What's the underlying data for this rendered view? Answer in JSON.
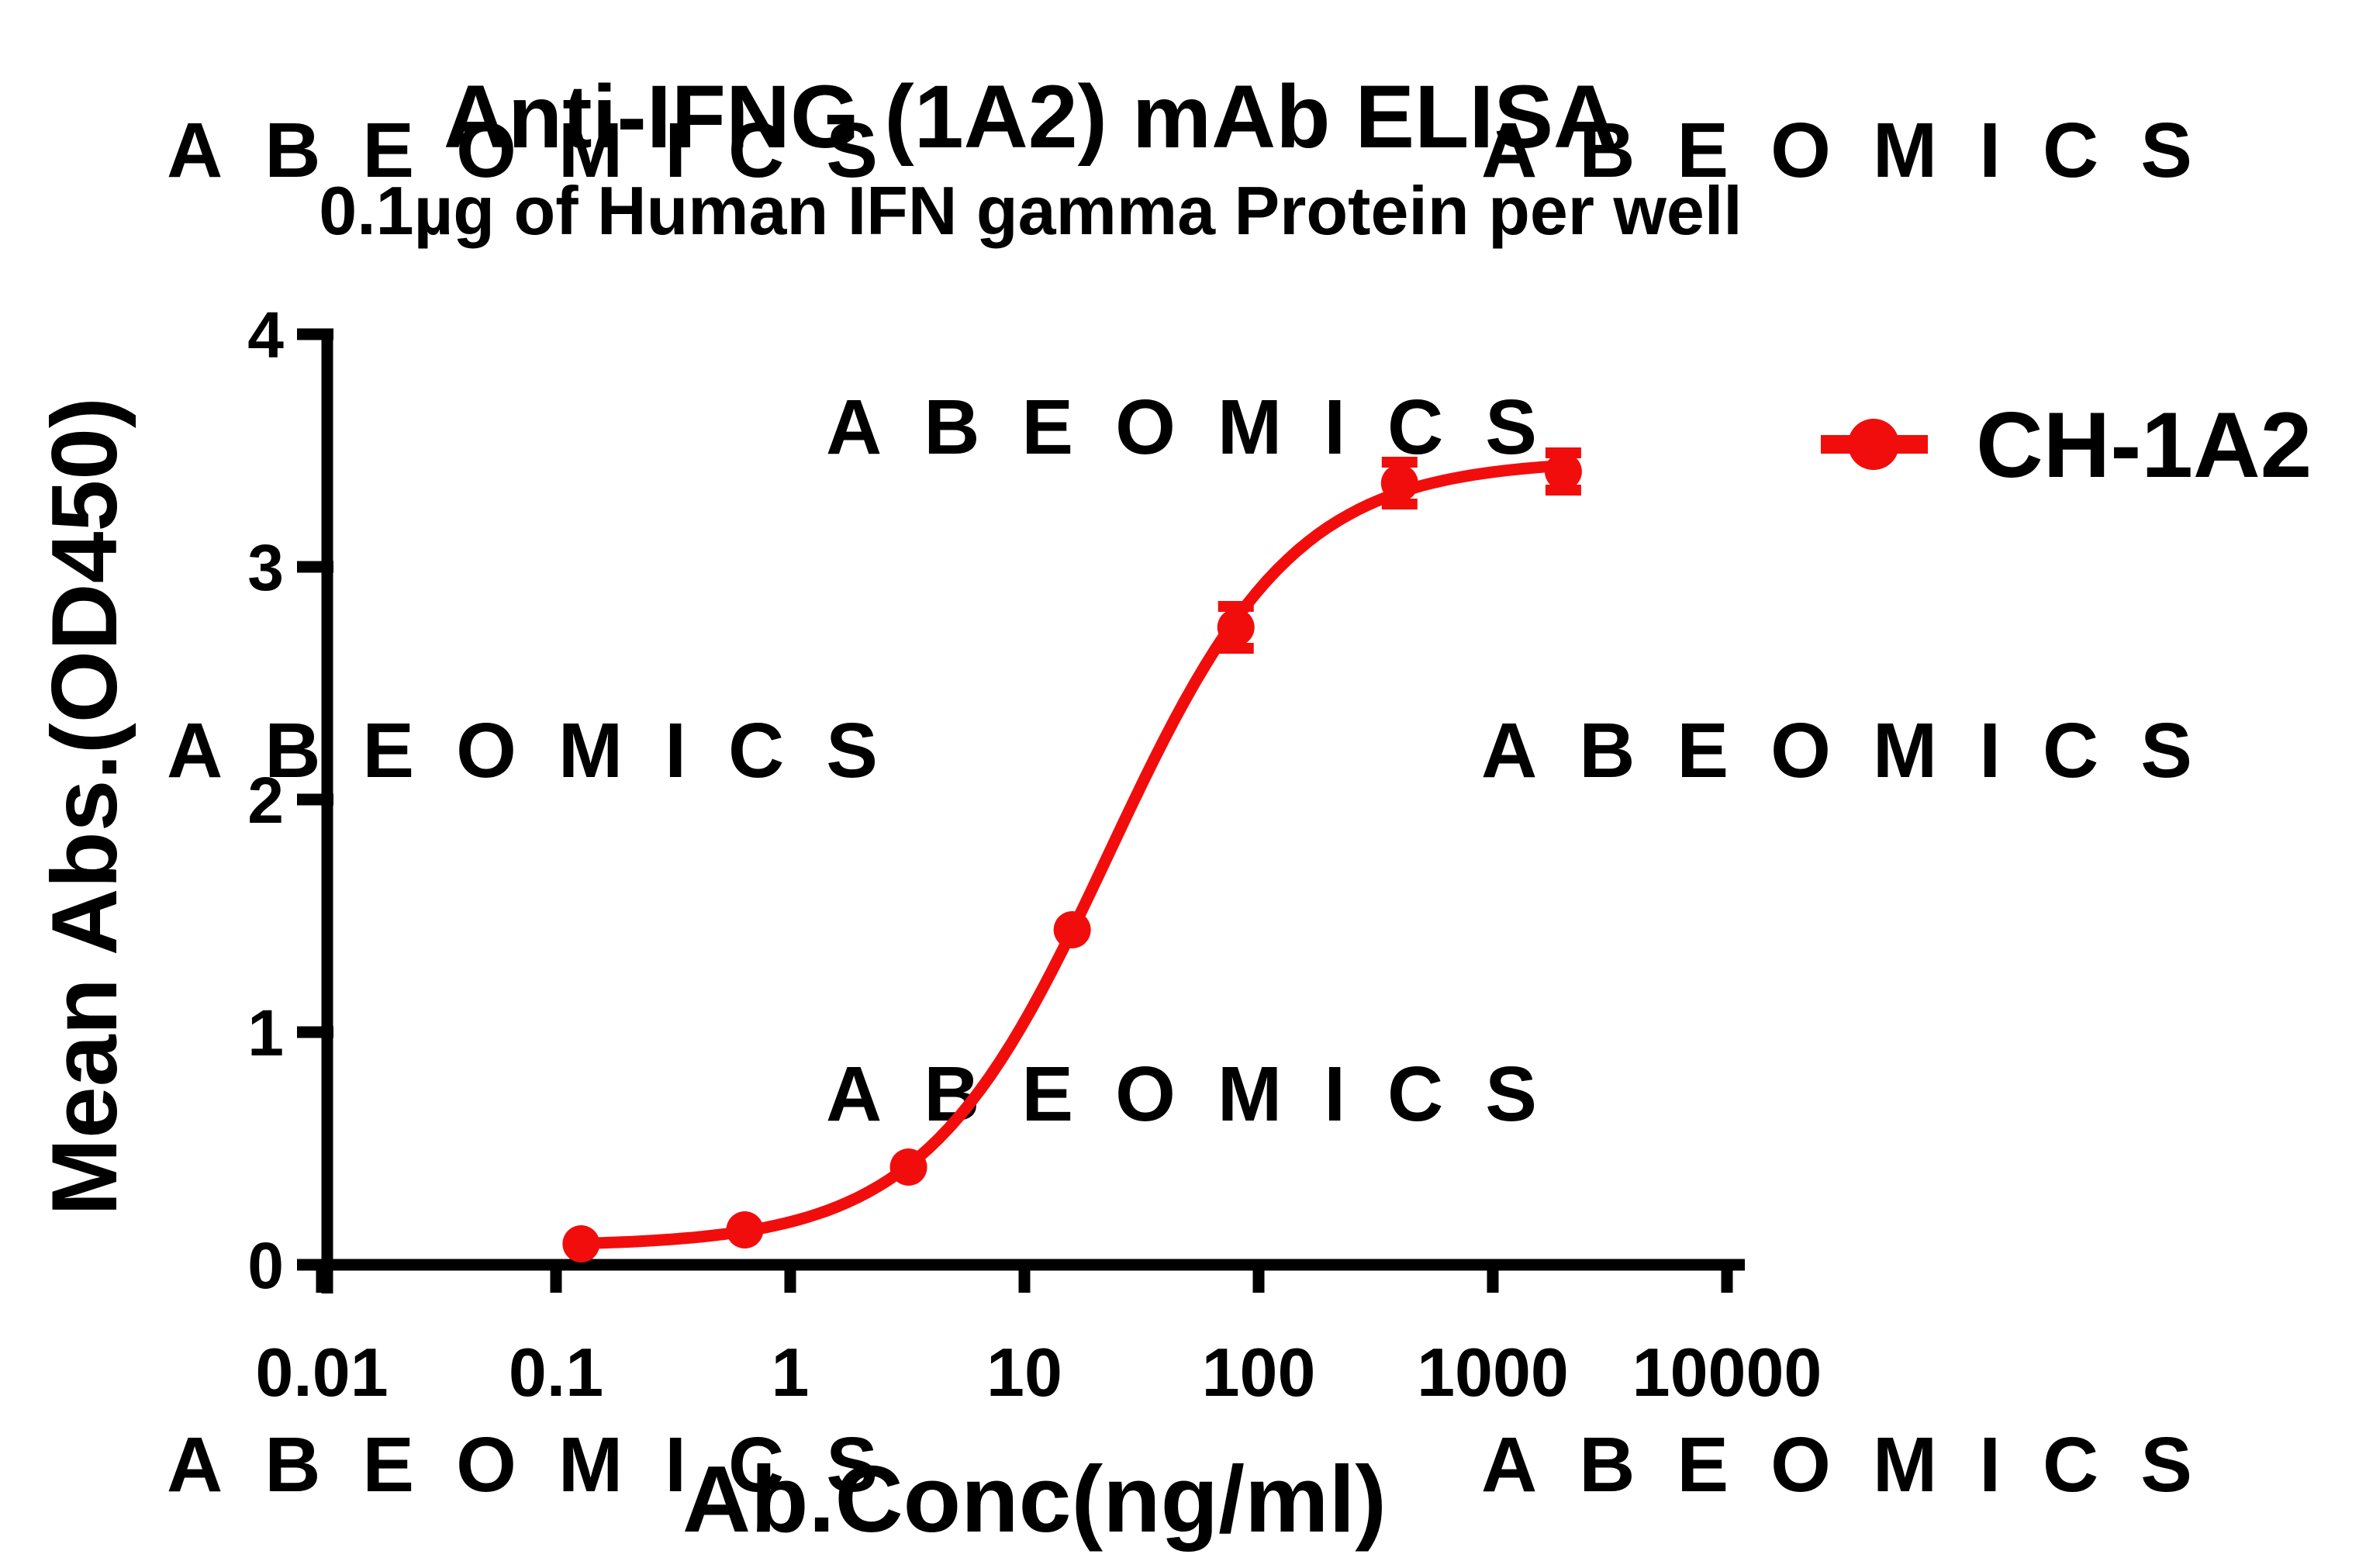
{
  "watermark": {
    "text": "ABEOMICS",
    "color": "#f1eaef"
  },
  "legend": {
    "label": "CH-1A2"
  },
  "colors": {
    "series": "#f20d0d",
    "axis": "#000000",
    "background": "#ffffff"
  },
  "chart_data": {
    "type": "line",
    "title": "Anti-IFNG (1A2) mAb ELISA",
    "subtitle": "0.1µg of Human IFN gamma Protein per well",
    "xlabel": "Ab.Conc(ng/ml)",
    "ylabel": "Mean Abs.(OD450)",
    "x_scale": "log10",
    "xlim": [
      0.01,
      10000
    ],
    "ylim": [
      0,
      4
    ],
    "grid": false,
    "legend_position": "right",
    "x_ticks": [
      {
        "v": 0.01,
        "label": "0.01"
      },
      {
        "v": 0.1,
        "label": "0.1"
      },
      {
        "v": 1,
        "label": "1"
      },
      {
        "v": 10,
        "label": "10"
      },
      {
        "v": 100,
        "label": "100"
      },
      {
        "v": 1000,
        "label": "1000"
      },
      {
        "v": 10000,
        "label": "10000"
      }
    ],
    "y_ticks": [
      {
        "v": 0,
        "label": "0"
      },
      {
        "v": 1,
        "label": "1"
      },
      {
        "v": 2,
        "label": "2"
      },
      {
        "v": 3,
        "label": "3"
      },
      {
        "v": 4,
        "label": "4"
      }
    ],
    "series": [
      {
        "name": "CH-1A2",
        "color": "#f20d0d",
        "marker": "circle",
        "x": [
          0.128,
          0.64,
          3.2,
          16,
          80,
          400,
          2000
        ],
        "y": [
          0.09,
          0.15,
          0.42,
          1.44,
          2.74,
          3.36,
          3.41
        ],
        "y_err": [
          0,
          0,
          0,
          0,
          0.09,
          0.09,
          0.08
        ]
      }
    ],
    "fit_curve": {
      "model": "4PL",
      "bottom": 0.08,
      "top": 3.46,
      "ec50": 23,
      "hill": 1.1
    }
  }
}
